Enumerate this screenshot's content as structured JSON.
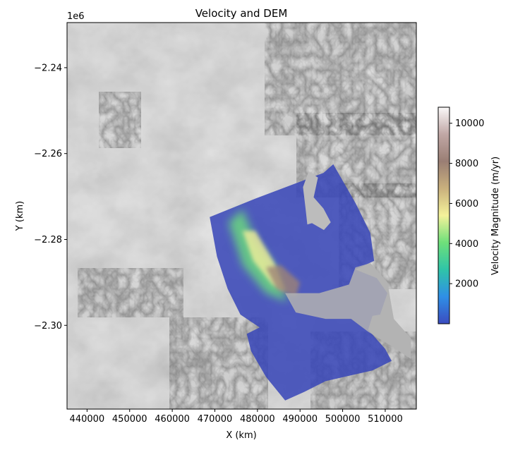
{
  "chart_data": {
    "type": "heatmap",
    "title": "Velocity and DEM",
    "xlabel": "X (km)",
    "ylabel": "Y (km)",
    "y_offset_text": "1e6",
    "xlim": [
      435300,
      517300
    ],
    "ylim": [
      -2319500,
      -2229500
    ],
    "x_ticks": [
      440000,
      450000,
      460000,
      470000,
      480000,
      490000,
      500000,
      510000
    ],
    "x_tick_labels": [
      "440000",
      "450000",
      "460000",
      "470000",
      "480000",
      "490000",
      "500000",
      "510000"
    ],
    "y_ticks": [
      -2240000,
      -2260000,
      -2280000,
      -2300000
    ],
    "y_tick_labels": [
      "−2.24",
      "−2.26",
      "−2.28",
      "−2.30"
    ],
    "grid": false,
    "basemap": "hillshaded DEM (greyscale)",
    "overlay": "velocity magnitude (semi-transparent)",
    "colorbar": {
      "label": "Velocity Magnitude (m/yr)",
      "range": [
        0,
        10800
      ],
      "ticks": [
        2000,
        4000,
        6000,
        8000,
        10000
      ],
      "tick_labels": [
        "2000",
        "4000",
        "6000",
        "8000",
        "10000"
      ],
      "colormap_stops": [
        "#3b4cc0",
        "#2f8fe6",
        "#2fc4a8",
        "#6ee07a",
        "#f4f29a",
        "#c9b07d",
        "#9a7e74",
        "#c0a7a5",
        "#fbf9f9"
      ]
    },
    "velocity_coverage_polygon": [
      [
        468800,
        -2274800
      ],
      [
        479500,
        -2270500
      ],
      [
        495500,
        -2264500
      ],
      [
        497800,
        -2262500
      ],
      [
        503000,
        -2271500
      ],
      [
        506500,
        -2278500
      ],
      [
        507400,
        -2285000
      ],
      [
        503000,
        -2287000
      ],
      [
        508000,
        -2289000
      ],
      [
        510500,
        -2292500
      ],
      [
        508800,
        -2297500
      ],
      [
        507000,
        -2297800
      ],
      [
        506000,
        -2301000
      ],
      [
        510000,
        -2305500
      ],
      [
        511500,
        -2308300
      ],
      [
        507000,
        -2310500
      ],
      [
        496000,
        -2313000
      ],
      [
        491000,
        -2315500
      ],
      [
        486500,
        -2317500
      ],
      [
        482000,
        -2312000
      ],
      [
        478500,
        -2306000
      ],
      [
        477500,
        -2302000
      ],
      [
        480500,
        -2300500
      ],
      [
        476000,
        -2297500
      ],
      [
        473000,
        -2291500
      ],
      [
        470500,
        -2284000
      ]
    ],
    "fast_flow_bands": [
      {
        "value": 4000,
        "path": [
          [
            473200,
            -2276000
          ],
          [
            476500,
            -2286000
          ],
          [
            482000,
            -2292500
          ],
          [
            487000,
            -2294500
          ],
          [
            484500,
            -2287000
          ],
          [
            479500,
            -2280000
          ],
          [
            476500,
            -2273000
          ]
        ]
      },
      {
        "value": 5500,
        "path": [
          [
            476500,
            -2278000
          ],
          [
            479000,
            -2285000
          ],
          [
            483500,
            -2290500
          ],
          [
            486500,
            -2292000
          ],
          [
            484000,
            -2285500
          ],
          [
            479500,
            -2278000
          ]
        ]
      },
      {
        "value": 8000,
        "path": [
          [
            482000,
            -2286500
          ],
          [
            484500,
            -2291500
          ],
          [
            489000,
            -2293500
          ],
          [
            490000,
            -2290000
          ],
          [
            485500,
            -2286000
          ]
        ]
      }
    ],
    "ocean_region": [
      [
        486500,
        -2292500
      ],
      [
        494500,
        -2292500
      ],
      [
        501500,
        -2290500
      ],
      [
        503000,
        -2286500
      ],
      [
        506500,
        -2285500
      ],
      [
        510500,
        -2290000
      ],
      [
        512000,
        -2298500
      ],
      [
        516000,
        -2303000
      ],
      [
        516000,
        -2307800
      ],
      [
        511000,
        -2304500
      ],
      [
        506000,
        -2301500
      ],
      [
        502000,
        -2298500
      ],
      [
        496000,
        -2298500
      ],
      [
        489000,
        -2297000
      ]
    ],
    "nunatak_region": [
      [
        490700,
        -2267800
      ],
      [
        492000,
        -2264200
      ],
      [
        494200,
        -2265600
      ],
      [
        493200,
        -2270200
      ],
      [
        495500,
        -2272800
      ],
      [
        497200,
        -2276000
      ],
      [
        495600,
        -2277800
      ],
      [
        492800,
        -2276200
      ],
      [
        491700,
        -2276500
      ],
      [
        491300,
        -2272800
      ]
    ]
  }
}
